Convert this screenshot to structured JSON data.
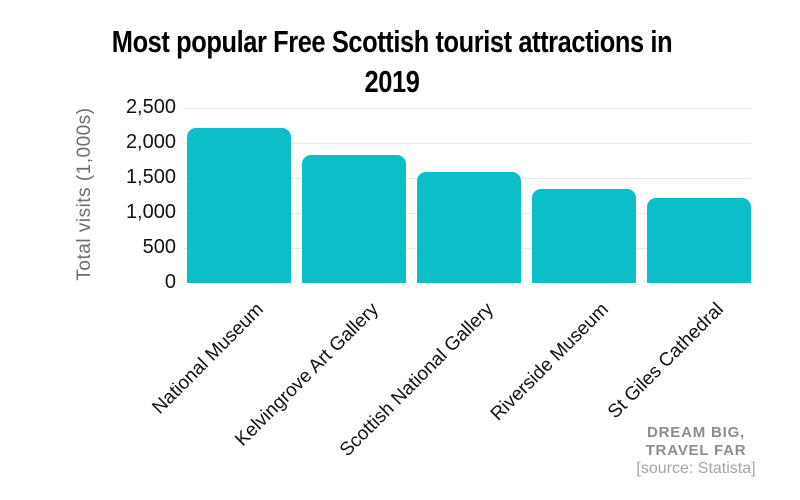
{
  "title": {
    "line1": "Most popular Free Scottish tourist attractions in",
    "line2": "2019"
  },
  "chart_data": {
    "type": "bar",
    "title": "Most popular Free Scottish tourist attractions in 2019",
    "categories": [
      "National Museum",
      "Kelvingrove Art Gallery",
      "Scottish National Gallery",
      "Riverside Museum",
      "St Giles Cathedral"
    ],
    "values": [
      2210,
      1830,
      1580,
      1350,
      1210
    ],
    "xlabel": "",
    "ylabel": "Total visits (1,000s)",
    "ylim": [
      0,
      2500
    ],
    "ytick_interval": 500,
    "ytick_labels": [
      "0",
      "500",
      "1,000",
      "1,500",
      "2,000",
      "2,500"
    ],
    "grid": true,
    "legend": false,
    "bar_color": "#0cbec8"
  },
  "watermark": {
    "line1": "DREAM BIG,",
    "line2": "TRAVEL FAR"
  },
  "source": {
    "text": "[source: Statista]"
  },
  "colors": {
    "background": "#ffffff",
    "bar": "#0cbec8",
    "title": "#000000",
    "axis_text": "#121212",
    "axis_title": "#6e6e6e",
    "gridline": "#e9e9e9",
    "watermark": "#8d8d8d",
    "source": "#a6a6a6"
  }
}
